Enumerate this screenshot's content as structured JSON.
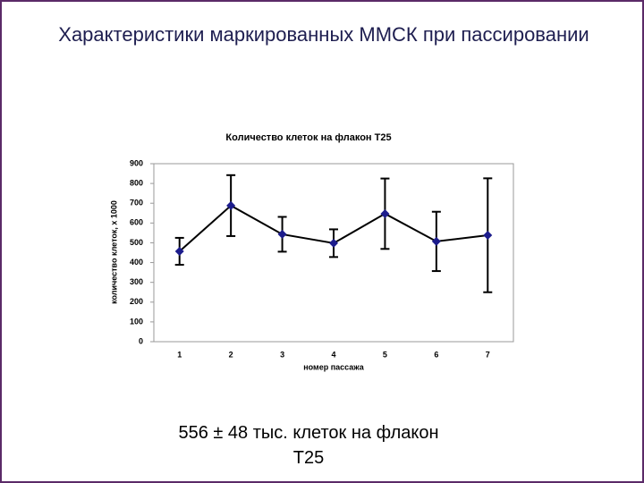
{
  "slide_title": "Характеристики маркированных ММСК при пассировании",
  "caption": "556 ± 48 тыс. клеток на флакон Т25",
  "chart_data": {
    "type": "line",
    "title": "Количество клеток на флакон Т25",
    "xlabel": "номер пассажа",
    "ylabel": "количество клеток, х 1000",
    "categories": [
      "1",
      "2",
      "3",
      "4",
      "5",
      "6",
      "7"
    ],
    "values": [
      457,
      688,
      543,
      498,
      647,
      507,
      538
    ],
    "errors": [
      68,
      154,
      88,
      70,
      178,
      150,
      288
    ],
    "color": "#1c1c8c",
    "line_color": "#000000",
    "ylim": [
      0,
      900
    ],
    "yticks": [
      0,
      100,
      200,
      300,
      400,
      500,
      600,
      700,
      800,
      900
    ]
  }
}
